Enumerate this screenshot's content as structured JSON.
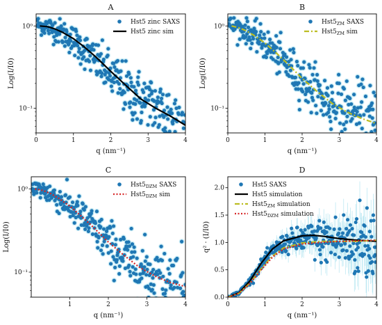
{
  "colors": {
    "saxs": "#1f77b4",
    "error_band": "#aee3f0",
    "sim_hst5": "#000000",
    "sim_zm": "#bcbd22",
    "sim_dzm": "#d62728"
  },
  "chart_data": [
    {
      "id": "A",
      "title": "A",
      "type": "scatter",
      "xlabel": "q (nm⁻¹)",
      "ylabel": "Log(I/I0)",
      "xlim": [
        0,
        4
      ],
      "ylim": [
        0.05,
        1.4
      ],
      "yscale": "log",
      "xticks": [
        "0",
        "1",
        "2",
        "3",
        "4"
      ],
      "yticks": [
        {
          "v": 1,
          "label": "10⁰"
        },
        {
          "v": 0.1,
          "label": "10⁻¹"
        }
      ],
      "legend_position": "top-right",
      "series": [
        {
          "name": "Hst5 zinc SAXS",
          "kind": "points",
          "color": "saxs",
          "model": [
            0.02,
            1.05,
            0.1,
            1.02,
            0.3,
            0.98,
            0.5,
            0.9,
            0.7,
            0.82,
            1.0,
            0.66,
            1.3,
            0.5,
            1.6,
            0.37,
            2.0,
            0.25,
            2.4,
            0.17,
            2.8,
            0.125,
            3.2,
            0.1,
            3.6,
            0.08,
            4.0,
            0.065
          ]
        },
        {
          "name": "Hst5 zinc sim",
          "kind": "line",
          "color": "sim_hst5",
          "dash": "",
          "points": [
            [
              0.1,
              1.0
            ],
            [
              0.3,
              0.98
            ],
            [
              0.5,
              0.92
            ],
            [
              0.7,
              0.84
            ],
            [
              1.0,
              0.7
            ],
            [
              1.3,
              0.55
            ],
            [
              1.6,
              0.42
            ],
            [
              2.0,
              0.28
            ],
            [
              2.4,
              0.19
            ],
            [
              2.8,
              0.13
            ],
            [
              3.2,
              0.1
            ],
            [
              3.6,
              0.08
            ],
            [
              4.0,
              0.062
            ]
          ]
        }
      ]
    },
    {
      "id": "B",
      "title": "B",
      "type": "scatter",
      "xlabel": "q (nm⁻¹)",
      "ylabel": "Log(I/I0)",
      "xlim": [
        0,
        4
      ],
      "ylim": [
        0.05,
        1.4
      ],
      "yscale": "log",
      "xticks": [
        "0",
        "1",
        "2",
        "3",
        "4"
      ],
      "yticks": [
        {
          "v": 1,
          "label": "10⁰"
        },
        {
          "v": 0.1,
          "label": "10⁻¹"
        }
      ],
      "legend_position": "top-right",
      "series": [
        {
          "name": "Hst5ZM SAXS",
          "name_main": "Hst5",
          "name_sub": "ZM",
          "name_rest": " SAXS",
          "kind": "points",
          "color": "saxs",
          "model": [
            0.02,
            1.05,
            0.1,
            1.02,
            0.3,
            0.95,
            0.5,
            0.86,
            0.7,
            0.76,
            1.0,
            0.6,
            1.3,
            0.45,
            1.6,
            0.33,
            2.0,
            0.22,
            2.4,
            0.15,
            2.8,
            0.11,
            3.2,
            0.09,
            3.6,
            0.075,
            4.0,
            0.065
          ]
        },
        {
          "name": "Hst5ZM sim",
          "name_main": "Hst5",
          "name_sub": "ZM",
          "name_rest": " sim",
          "kind": "line",
          "color": "sim_zm",
          "dash": "7,3,2,3",
          "points": [
            [
              0.1,
              1.0
            ],
            [
              0.3,
              0.95
            ],
            [
              0.5,
              0.87
            ],
            [
              0.7,
              0.77
            ],
            [
              1.0,
              0.62
            ],
            [
              1.3,
              0.47
            ],
            [
              1.6,
              0.35
            ],
            [
              2.0,
              0.23
            ],
            [
              2.4,
              0.16
            ],
            [
              2.8,
              0.115
            ],
            [
              3.2,
              0.09
            ],
            [
              3.6,
              0.075
            ],
            [
              4.0,
              0.065
            ]
          ]
        }
      ]
    },
    {
      "id": "C",
      "title": "C",
      "type": "scatter",
      "xlabel": "q (nm⁻¹)",
      "ylabel": "Log(I/I0)",
      "xlim": [
        0,
        4
      ],
      "ylim": [
        0.05,
        1.4
      ],
      "yscale": "log",
      "xticks": [
        "1",
        "2",
        "3",
        "4"
      ],
      "yticks": [
        {
          "v": 1,
          "label": "10⁰"
        },
        {
          "v": 0.1,
          "label": "10⁻¹"
        }
      ],
      "legend_position": "top-right",
      "series": [
        {
          "name": "Hst5DZM SAXS",
          "name_main": "Hst5",
          "name_sub": "DZM",
          "name_rest": " SAXS",
          "kind": "points",
          "color": "saxs",
          "model": [
            0.02,
            1.05,
            0.1,
            1.02,
            0.3,
            0.96,
            0.5,
            0.87,
            0.7,
            0.77,
            1.0,
            0.61,
            1.3,
            0.46,
            1.6,
            0.34,
            2.0,
            0.22,
            2.4,
            0.15,
            2.8,
            0.11,
            3.2,
            0.09,
            3.6,
            0.075,
            4.0,
            0.065
          ]
        },
        {
          "name": "Hst5DZM sim",
          "name_main": "Hst5",
          "name_sub": "DZM",
          "name_rest": " sim",
          "kind": "line",
          "color": "sim_dzm",
          "dash": "2,2.5",
          "points": [
            [
              0.1,
              1.0
            ],
            [
              0.3,
              0.96
            ],
            [
              0.5,
              0.88
            ],
            [
              0.7,
              0.78
            ],
            [
              1.0,
              0.62
            ],
            [
              1.3,
              0.47
            ],
            [
              1.6,
              0.35
            ],
            [
              2.0,
              0.23
            ],
            [
              2.4,
              0.16
            ],
            [
              2.8,
              0.115
            ],
            [
              3.2,
              0.09
            ],
            [
              3.6,
              0.075
            ],
            [
              4.0,
              0.067
            ]
          ]
        }
      ]
    },
    {
      "id": "D",
      "title": "D",
      "type": "scatter",
      "xlabel": "q (nm⁻¹)",
      "ylabel": "q² · (I/I0)",
      "xlim": [
        0,
        4
      ],
      "ylim": [
        0,
        2.2
      ],
      "yscale": "linear",
      "xticks": [
        "0",
        "1",
        "2",
        "3",
        "4"
      ],
      "yticks": [
        {
          "v": 0,
          "label": "0.0"
        },
        {
          "v": 0.5,
          "label": "0.5"
        },
        {
          "v": 1.0,
          "label": "1.0"
        },
        {
          "v": 1.5,
          "label": "1.5"
        },
        {
          "v": 2.0,
          "label": "2.0"
        }
      ],
      "legend_position": "top-left",
      "series": [
        {
          "name": "Hst5 SAXS",
          "kind": "points",
          "color": "saxs",
          "model": [
            0.0,
            0.0,
            0.3,
            0.08,
            0.6,
            0.3,
            0.9,
            0.6,
            1.2,
            0.85,
            1.5,
            0.98,
            2.0,
            1.05,
            2.5,
            1.04,
            3.0,
            1.02,
            3.5,
            1.0,
            4.0,
            1.0
          ]
        },
        {
          "name": "Hst5 simulation",
          "kind": "line",
          "color": "sim_hst5",
          "dash": "",
          "points": [
            [
              0.0,
              0.0
            ],
            [
              0.3,
              0.08
            ],
            [
              0.6,
              0.3
            ],
            [
              0.9,
              0.62
            ],
            [
              1.2,
              0.88
            ],
            [
              1.5,
              1.03
            ],
            [
              2.0,
              1.12
            ],
            [
              2.3,
              1.13
            ],
            [
              2.6,
              1.11
            ],
            [
              3.0,
              1.07
            ],
            [
              3.5,
              1.04
            ],
            [
              4.0,
              1.02
            ]
          ]
        },
        {
          "name": "Hst5ZM simulation",
          "name_main": "Hst5",
          "name_sub": "ZM",
          "name_rest": " simulation",
          "kind": "line",
          "color": "sim_zm",
          "dash": "7,3,2,3",
          "points": [
            [
              0.0,
              0.0
            ],
            [
              0.3,
              0.07
            ],
            [
              0.6,
              0.26
            ],
            [
              0.9,
              0.52
            ],
            [
              1.2,
              0.75
            ],
            [
              1.5,
              0.9
            ],
            [
              2.0,
              0.99
            ],
            [
              2.5,
              1.02
            ],
            [
              3.0,
              1.02
            ],
            [
              3.5,
              1.02
            ],
            [
              4.0,
              1.04
            ]
          ]
        },
        {
          "name": "Hst5DZM simulation",
          "name_main": "Hst5",
          "name_sub": "DZM",
          "name_rest": " simulation",
          "kind": "line",
          "color": "sim_dzm",
          "dash": "2,2.5",
          "points": [
            [
              0.0,
              0.0
            ],
            [
              0.3,
              0.07
            ],
            [
              0.6,
              0.25
            ],
            [
              0.9,
              0.5
            ],
            [
              1.2,
              0.73
            ],
            [
              1.5,
              0.88
            ],
            [
              2.0,
              0.97
            ],
            [
              2.5,
              1.0
            ],
            [
              3.0,
              1.02
            ],
            [
              3.5,
              1.03
            ],
            [
              4.0,
              1.04
            ]
          ]
        }
      ]
    }
  ]
}
